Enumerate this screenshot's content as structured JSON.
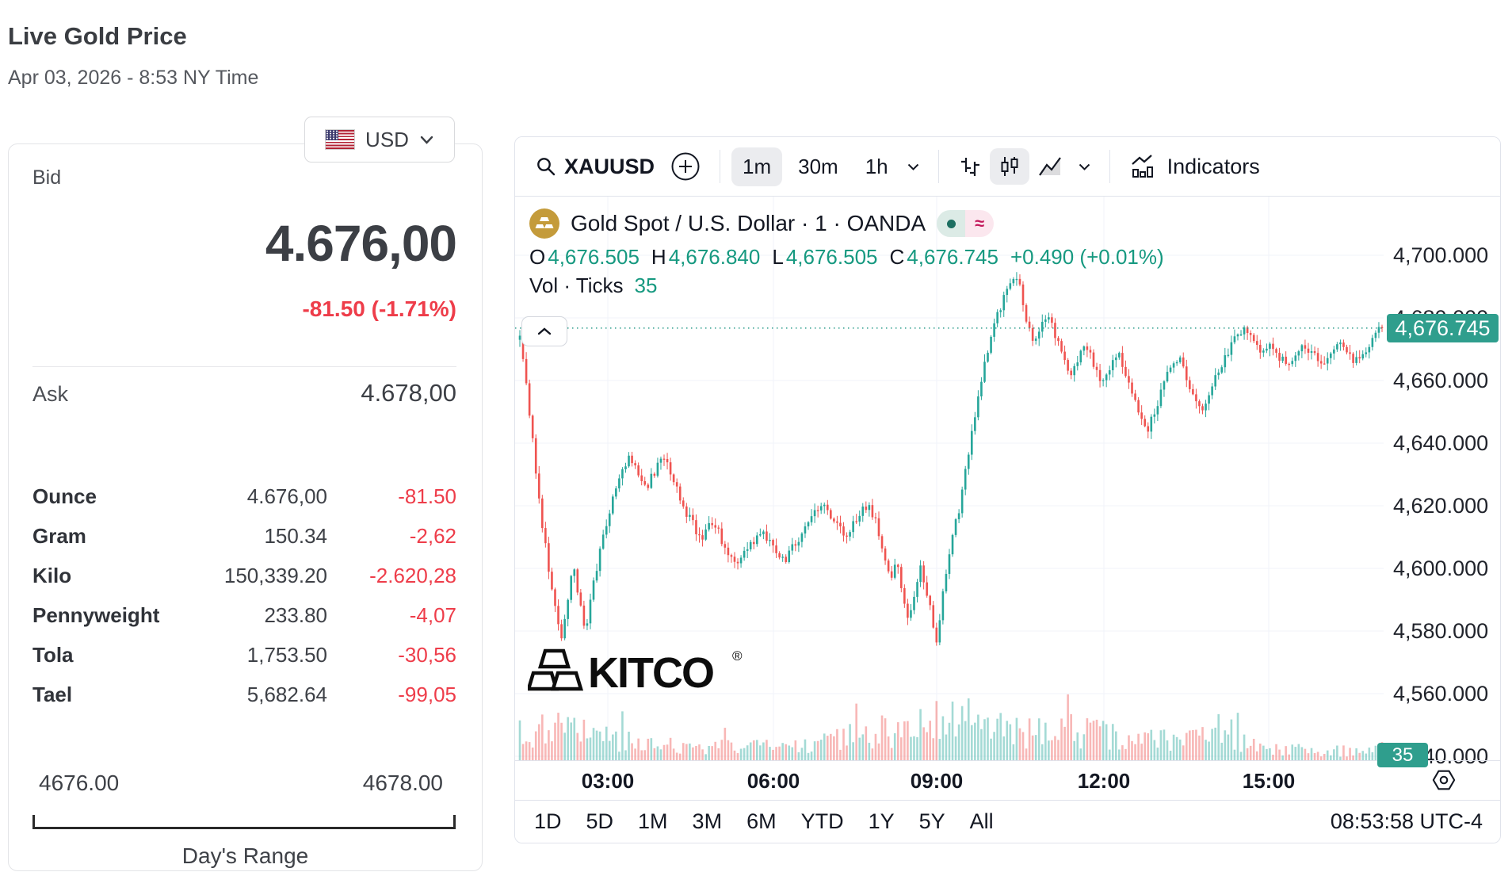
{
  "page": {
    "title": "Live Gold Price",
    "subtitle": "Apr 03, 2026 - 8:53 NY Time"
  },
  "currency": {
    "code": "USD",
    "flag": "us-flag"
  },
  "quote": {
    "bid_label": "Bid",
    "bid_value": "4.676,00",
    "bid_change": "-81.50 (-1.71%)",
    "ask_label": "Ask",
    "ask_value": "4.678,00",
    "units": [
      {
        "label": "Ounce",
        "value": "4.676,00",
        "change": "-81.50"
      },
      {
        "label": "Gram",
        "value": "150.34",
        "change": "-2,62"
      },
      {
        "label": "Kilo",
        "value": "150,339.20",
        "change": "-2.620,28"
      },
      {
        "label": "Pennyweight",
        "value": "233.80",
        "change": "-4,07"
      },
      {
        "label": "Tola",
        "value": "1,753.50",
        "change": "-30,56"
      },
      {
        "label": "Tael",
        "value": "5,682.64",
        "change": "-99,05"
      }
    ],
    "range": {
      "low": "4676.00",
      "high": "4678.00",
      "label": "Day's Range"
    }
  },
  "chart": {
    "toolbar": {
      "symbol": "XAUUSD",
      "intervals": [
        "1m",
        "30m",
        "1h"
      ],
      "active_interval": "1m",
      "indicators_label": "Indicators"
    },
    "legend": {
      "title": "Gold Spot / U.S. Dollar · 1 · OANDA"
    },
    "ohlc": {
      "pairs": [
        [
          "O",
          "4,676.505"
        ],
        [
          "H",
          "4,676.840"
        ],
        [
          "L",
          "4,676.505"
        ],
        [
          "C",
          "4,676.745"
        ]
      ],
      "change": "+0.490 (+0.01%)",
      "vol_label": "Vol · Ticks",
      "vol_value": "35"
    },
    "watermark": "KITCO",
    "axis": {
      "price_labels": [
        "4,700.000",
        "4,680.000",
        "4,660.000",
        "4,640.000",
        "4,620.000",
        "4,600.000",
        "4,580.000",
        "4,560.000",
        "4,540.000"
      ],
      "time_labels": [
        "03:00",
        "06:00",
        "09:00",
        "12:00",
        "15:00"
      ],
      "last_price_tag": "4,676.745",
      "volume_tag": "35"
    },
    "footer": {
      "ranges": [
        "1D",
        "5D",
        "1M",
        "3M",
        "6M",
        "YTD",
        "1Y",
        "5Y",
        "All"
      ],
      "clock": "08:53:58 UTC-4"
    },
    "colors": {
      "up": "#26a69a",
      "down": "#ef5350",
      "value_text": "#169980",
      "tag_bg": "#2f9e8d",
      "negative": "#ee3d4a",
      "grid": "#f0f3fa",
      "text": "#131722"
    },
    "chart_data": {
      "type": "candlestick",
      "title": "Gold Spot / U.S. Dollar, 1 minute, OANDA",
      "open": 4676.505,
      "high": 4676.84,
      "low": 4676.505,
      "close": 4676.745,
      "change": 0.49,
      "change_pct": 0.01,
      "ticks_volume": 35,
      "last_price": 4676.745,
      "session_high": 4694,
      "session_low": 4576,
      "y_axis": {
        "ticks": [
          4540,
          4560,
          4580,
          4600,
          4620,
          4640,
          4660,
          4680,
          4700
        ]
      },
      "x_axis": {
        "ticks": [
          "03:00",
          "06:00",
          "09:00",
          "12:00",
          "15:00"
        ]
      },
      "price_waypoints": [
        [
          0,
          4673
        ],
        [
          0.006,
          4661
        ],
        [
          0.013,
          4645
        ],
        [
          0.02,
          4628
        ],
        [
          0.028,
          4610
        ],
        [
          0.035,
          4596
        ],
        [
          0.042,
          4585
        ],
        [
          0.048,
          4576
        ],
        [
          0.055,
          4590
        ],
        [
          0.062,
          4600
        ],
        [
          0.069,
          4589
        ],
        [
          0.076,
          4579
        ],
        [
          0.085,
          4594
        ],
        [
          0.095,
          4608
        ],
        [
          0.107,
          4621
        ],
        [
          0.118,
          4631
        ],
        [
          0.127,
          4636
        ],
        [
          0.137,
          4630
        ],
        [
          0.147,
          4626
        ],
        [
          0.158,
          4632
        ],
        [
          0.169,
          4636
        ],
        [
          0.182,
          4626
        ],
        [
          0.196,
          4616
        ],
        [
          0.21,
          4610
        ],
        [
          0.224,
          4615
        ],
        [
          0.238,
          4607
        ],
        [
          0.252,
          4600
        ],
        [
          0.266,
          4607
        ],
        [
          0.28,
          4613
        ],
        [
          0.294,
          4607
        ],
        [
          0.308,
          4603
        ],
        [
          0.322,
          4609
        ],
        [
          0.336,
          4615
        ],
        [
          0.35,
          4620
        ],
        [
          0.364,
          4615
        ],
        [
          0.378,
          4611
        ],
        [
          0.392,
          4617
        ],
        [
          0.405,
          4621
        ],
        [
          0.415,
          4613
        ],
        [
          0.423,
          4604
        ],
        [
          0.43,
          4597
        ],
        [
          0.437,
          4601
        ],
        [
          0.444,
          4593
        ],
        [
          0.451,
          4584
        ],
        [
          0.458,
          4592
        ],
        [
          0.465,
          4600
        ],
        [
          0.472,
          4592
        ],
        [
          0.479,
          4583
        ],
        [
          0.484,
          4577
        ],
        [
          0.492,
          4594
        ],
        [
          0.5,
          4607
        ],
        [
          0.51,
          4620
        ],
        [
          0.52,
          4636
        ],
        [
          0.53,
          4652
        ],
        [
          0.54,
          4666
        ],
        [
          0.55,
          4677
        ],
        [
          0.56,
          4686
        ],
        [
          0.568,
          4692
        ],
        [
          0.575,
          4694
        ],
        [
          0.582,
          4687
        ],
        [
          0.589,
          4678
        ],
        [
          0.596,
          4671
        ],
        [
          0.604,
          4678
        ],
        [
          0.612,
          4682
        ],
        [
          0.621,
          4674
        ],
        [
          0.63,
          4667
        ],
        [
          0.639,
          4661
        ],
        [
          0.648,
          4667
        ],
        [
          0.657,
          4672
        ],
        [
          0.666,
          4664
        ],
        [
          0.675,
          4658
        ],
        [
          0.684,
          4664
        ],
        [
          0.693,
          4669
        ],
        [
          0.702,
          4662
        ],
        [
          0.711,
          4655
        ],
        [
          0.72,
          4649
        ],
        [
          0.729,
          4645
        ],
        [
          0.738,
          4652
        ],
        [
          0.747,
          4659
        ],
        [
          0.756,
          4664
        ],
        [
          0.765,
          4668
        ],
        [
          0.774,
          4661
        ],
        [
          0.783,
          4654
        ],
        [
          0.792,
          4649
        ],
        [
          0.801,
          4656
        ],
        [
          0.81,
          4663
        ],
        [
          0.82,
          4669
        ],
        [
          0.83,
          4674
        ],
        [
          0.84,
          4677
        ],
        [
          0.85,
          4672
        ],
        [
          0.86,
          4668
        ],
        [
          0.87,
          4671
        ],
        [
          0.88,
          4668
        ],
        [
          0.89,
          4665
        ],
        [
          0.9,
          4668
        ],
        [
          0.91,
          4671
        ],
        [
          0.92,
          4668
        ],
        [
          0.93,
          4666
        ],
        [
          0.94,
          4669
        ],
        [
          0.95,
          4672
        ],
        [
          0.96,
          4669
        ],
        [
          0.97,
          4666
        ],
        [
          0.98,
          4670
        ],
        [
          0.99,
          4674
        ],
        [
          1,
          4676.7
        ]
      ],
      "volume_envelope": [
        [
          0,
          0.55
        ],
        [
          0.03,
          0.75
        ],
        [
          0.06,
          0.6
        ],
        [
          0.09,
          0.55
        ],
        [
          0.12,
          0.45
        ],
        [
          0.16,
          0.35
        ],
        [
          0.2,
          0.3
        ],
        [
          0.25,
          0.28
        ],
        [
          0.3,
          0.34
        ],
        [
          0.34,
          0.3
        ],
        [
          0.37,
          0.45
        ],
        [
          0.4,
          0.6
        ],
        [
          0.44,
          0.65
        ],
        [
          0.48,
          0.8
        ],
        [
          0.5,
          0.95
        ],
        [
          0.53,
          0.85
        ],
        [
          0.56,
          0.7
        ],
        [
          0.59,
          0.6
        ],
        [
          0.62,
          0.7
        ],
        [
          0.65,
          0.6
        ],
        [
          0.68,
          0.55
        ],
        [
          0.71,
          0.5
        ],
        [
          0.74,
          0.45
        ],
        [
          0.77,
          0.42
        ],
        [
          0.8,
          0.5
        ],
        [
          0.816,
          0.9
        ],
        [
          0.83,
          0.45
        ],
        [
          0.86,
          0.3
        ],
        [
          0.9,
          0.25
        ],
        [
          0.94,
          0.22
        ],
        [
          0.97,
          0.2
        ],
        [
          1,
          0.26
        ]
      ]
    }
  }
}
